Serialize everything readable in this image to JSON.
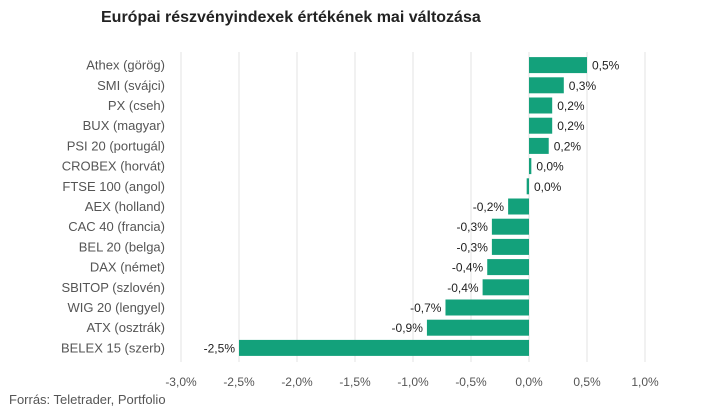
{
  "chart_data": {
    "type": "bar",
    "orientation": "horizontal",
    "title": "Európai részvényindexek értékének mai változása",
    "source": "Forrás: Teletrader, Portfolio",
    "bar_color": "#13a17b",
    "categories": [
      "Athex (görög)",
      "SMI (svájci)",
      "PX (cseh)",
      "BUX (magyar)",
      "PSI 20 (portugál)",
      "CROBEX (horvát)",
      "FTSE 100 (angol)",
      "AEX (holland)",
      "CAC 40 (francia)",
      "BEL 20 (belga)",
      "DAX (német)",
      "SBITOP (szlovén)",
      "WIG 20 (lengyel)",
      "ATX (osztrák)",
      "BELEX 15 (szerb)"
    ],
    "values": [
      0.5,
      0.3,
      0.2,
      0.2,
      0.17,
      0.02,
      -0.02,
      -0.18,
      -0.32,
      -0.32,
      -0.36,
      -0.4,
      -0.72,
      -0.88,
      -2.5
    ],
    "value_labels": [
      "0,5%",
      "0,3%",
      "0,2%",
      "0,2%",
      "0,2%",
      "0,0%",
      "0,0%",
      "-0,2%",
      "-0,3%",
      "-0,3%",
      "-0,4%",
      "-0,4%",
      "-0,7%",
      "-0,9%",
      "-2,5%"
    ],
    "xlim": [
      -3.0,
      1.0
    ],
    "x_ticks": [
      -3.0,
      -2.5,
      -2.0,
      -1.5,
      -1.0,
      -0.5,
      0.0,
      0.5,
      1.0
    ],
    "x_tick_labels": [
      "-3,0%",
      "-2,5%",
      "-2,0%",
      "-1,5%",
      "-1,0%",
      "-0,5%",
      "0,0%",
      "0,5%",
      "1,0%"
    ],
    "grid": true
  }
}
